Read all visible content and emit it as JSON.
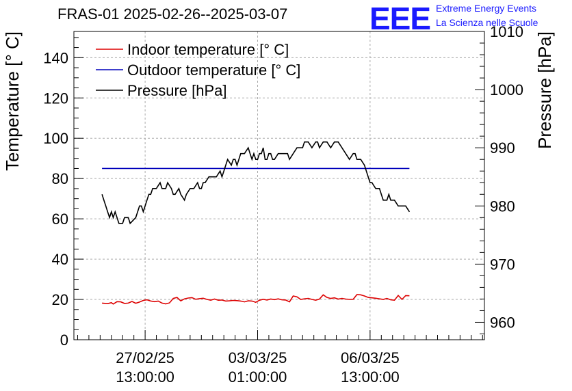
{
  "header": {
    "title": "FRAS-01 2025-02-26--2025-03-07",
    "logo_text": "EEE",
    "logo_line1": "Extreme Energy Events",
    "logo_line2": "La Scienza nelle Scuole"
  },
  "colors": {
    "indoor": "#dd0000",
    "outdoor": "#0000bb",
    "pressure": "#000000",
    "logo": "#1a1aff"
  },
  "chart_data": {
    "type": "line",
    "x_unit": "hours from 2025-02-26 00:00",
    "xlim": [
      -1,
      218
    ],
    "x_ticks": [
      {
        "x": 37,
        "label_date": "27/02/25",
        "label_time": "13:00:00"
      },
      {
        "x": 97,
        "label_date": "03/03/25",
        "label_time": "01:00:00"
      },
      {
        "x": 157,
        "label_date": "06/03/25",
        "label_time": "13:00:00"
      }
    ],
    "y_left": {
      "label": "Temperature [° C]",
      "lim": [
        0,
        153
      ],
      "ticks": [
        0,
        20,
        40,
        60,
        80,
        100,
        120,
        140
      ]
    },
    "y_right": {
      "label": "Pressure [hPa]",
      "lim": [
        957,
        1010
      ],
      "ticks": [
        960,
        970,
        980,
        990,
        1000,
        1010
      ]
    },
    "grid": true,
    "legend_position": "top-left",
    "series": [
      {
        "name": "Indoor temperature [° C]",
        "axis": "left",
        "x": [
          14,
          17,
          19,
          20,
          22,
          24,
          26,
          28,
          30,
          32,
          34,
          36,
          38,
          40,
          42,
          44,
          46,
          48,
          50,
          52,
          54,
          56,
          58,
          60,
          62,
          64,
          66,
          68,
          70,
          72,
          74,
          76,
          78,
          80,
          82,
          84,
          86,
          88,
          90,
          92,
          94,
          96,
          98,
          100,
          102,
          104,
          106,
          108,
          110,
          112,
          114,
          116,
          118,
          120,
          122,
          124,
          126,
          128,
          130,
          132,
          134,
          136,
          138,
          140,
          142,
          144,
          146,
          148,
          150,
          152,
          154,
          156,
          158,
          160,
          162,
          164,
          166,
          168,
          170,
          172,
          174,
          176,
          178
        ],
        "values": [
          18.2,
          17.9,
          18.4,
          17.7,
          18.9,
          18.8,
          18.0,
          18.2,
          19.0,
          18.1,
          18.7,
          19.5,
          19.8,
          19.2,
          18.9,
          19.2,
          18.2,
          17.8,
          18.3,
          20.5,
          21.0,
          19.3,
          20.3,
          20.7,
          20.9,
          20.1,
          20.4,
          20.6,
          20.0,
          19.6,
          20.2,
          19.6,
          19.7,
          19.2,
          19.3,
          19.5,
          19.4,
          19.2,
          18.8,
          19.3,
          19.2,
          18.6,
          19.6,
          20.1,
          19.7,
          20.2,
          19.9,
          20.3,
          19.8,
          19.7,
          18.8,
          21.7,
          21.3,
          20.0,
          20.3,
          20.5,
          20.0,
          19.6,
          20.2,
          22.3,
          21.0,
          20.5,
          20.8,
          20.2,
          20.5,
          20.2,
          20.0,
          20.1,
          22.4,
          22.3,
          21.7,
          21.0,
          20.8,
          20.6,
          20.3,
          20.0,
          20.5,
          19.8,
          19.6,
          22.0,
          20.0,
          21.9,
          21.8
        ]
      },
      {
        "name": "Outdoor temperature [° C]",
        "axis": "left",
        "x": [
          14,
          178
        ],
        "values": [
          85,
          85
        ]
      },
      {
        "name": "Pressure [hPa]",
        "axis": "right",
        "x": [
          14,
          15,
          16,
          17,
          18,
          19,
          20,
          21,
          22,
          23,
          24,
          25,
          26,
          28,
          29,
          32,
          33,
          34,
          35,
          36,
          38,
          39,
          40,
          41,
          43,
          45,
          46,
          48,
          49,
          51,
          52,
          53,
          55,
          56,
          58,
          59,
          61,
          63,
          65,
          66,
          67,
          68,
          69,
          71,
          73,
          75,
          77,
          78,
          79,
          80,
          81,
          83,
          84,
          85,
          86,
          87,
          88,
          90,
          92,
          93,
          94,
          95,
          96,
          97,
          98,
          99,
          100,
          101,
          102,
          103,
          104,
          105,
          106,
          108,
          110,
          112,
          113,
          114,
          116,
          118,
          120,
          121,
          122,
          124,
          126,
          128,
          129,
          130,
          132,
          134,
          136,
          138,
          140,
          142,
          144,
          146,
          148,
          149,
          150,
          152,
          154,
          155,
          156,
          157,
          158,
          160,
          162,
          163,
          164,
          166,
          167,
          168,
          170,
          172,
          174,
          176,
          178
        ],
        "values": [
          982.0,
          981.0,
          980.0,
          979.0,
          978.0,
          979.0,
          978.0,
          979.0,
          978.0,
          977.0,
          977.0,
          977.0,
          978.0,
          978.0,
          977.0,
          978.0,
          979.0,
          980.0,
          980.0,
          979.0,
          981.0,
          982.0,
          982.0,
          983.0,
          983.0,
          984.0,
          983.0,
          983.0,
          984.0,
          983.0,
          982.0,
          982.0,
          983.0,
          982.0,
          981.0,
          982.0,
          983.0,
          983.0,
          984.0,
          983.0,
          983.0,
          984.0,
          984.0,
          985.0,
          985.0,
          985.0,
          986.0,
          985.0,
          986.0,
          987.0,
          988.0,
          987.0,
          988.0,
          988.0,
          987.0,
          988.0,
          989.0,
          989.0,
          990.0,
          989.0,
          988.0,
          989.0,
          988.0,
          988.0,
          989.0,
          989.0,
          990.0,
          988.0,
          988.0,
          989.0,
          989.0,
          988.0,
          988.0,
          989.0,
          989.0,
          989.0,
          989.0,
          988.0,
          989.0,
          990.0,
          990.0,
          990.0,
          991.0,
          991.0,
          990.0,
          991.0,
          991.0,
          990.0,
          991.0,
          991.0,
          990.0,
          991.0,
          991.0,
          990.0,
          989.0,
          988.0,
          989.0,
          989.0,
          988.0,
          988.0,
          987.0,
          986.0,
          985.0,
          984.0,
          984.0,
          983.0,
          983.0,
          982.0,
          981.0,
          981.0,
          982.0,
          981.0,
          981.0,
          980.0,
          980.0,
          980.0,
          979.0
        ]
      }
    ]
  }
}
